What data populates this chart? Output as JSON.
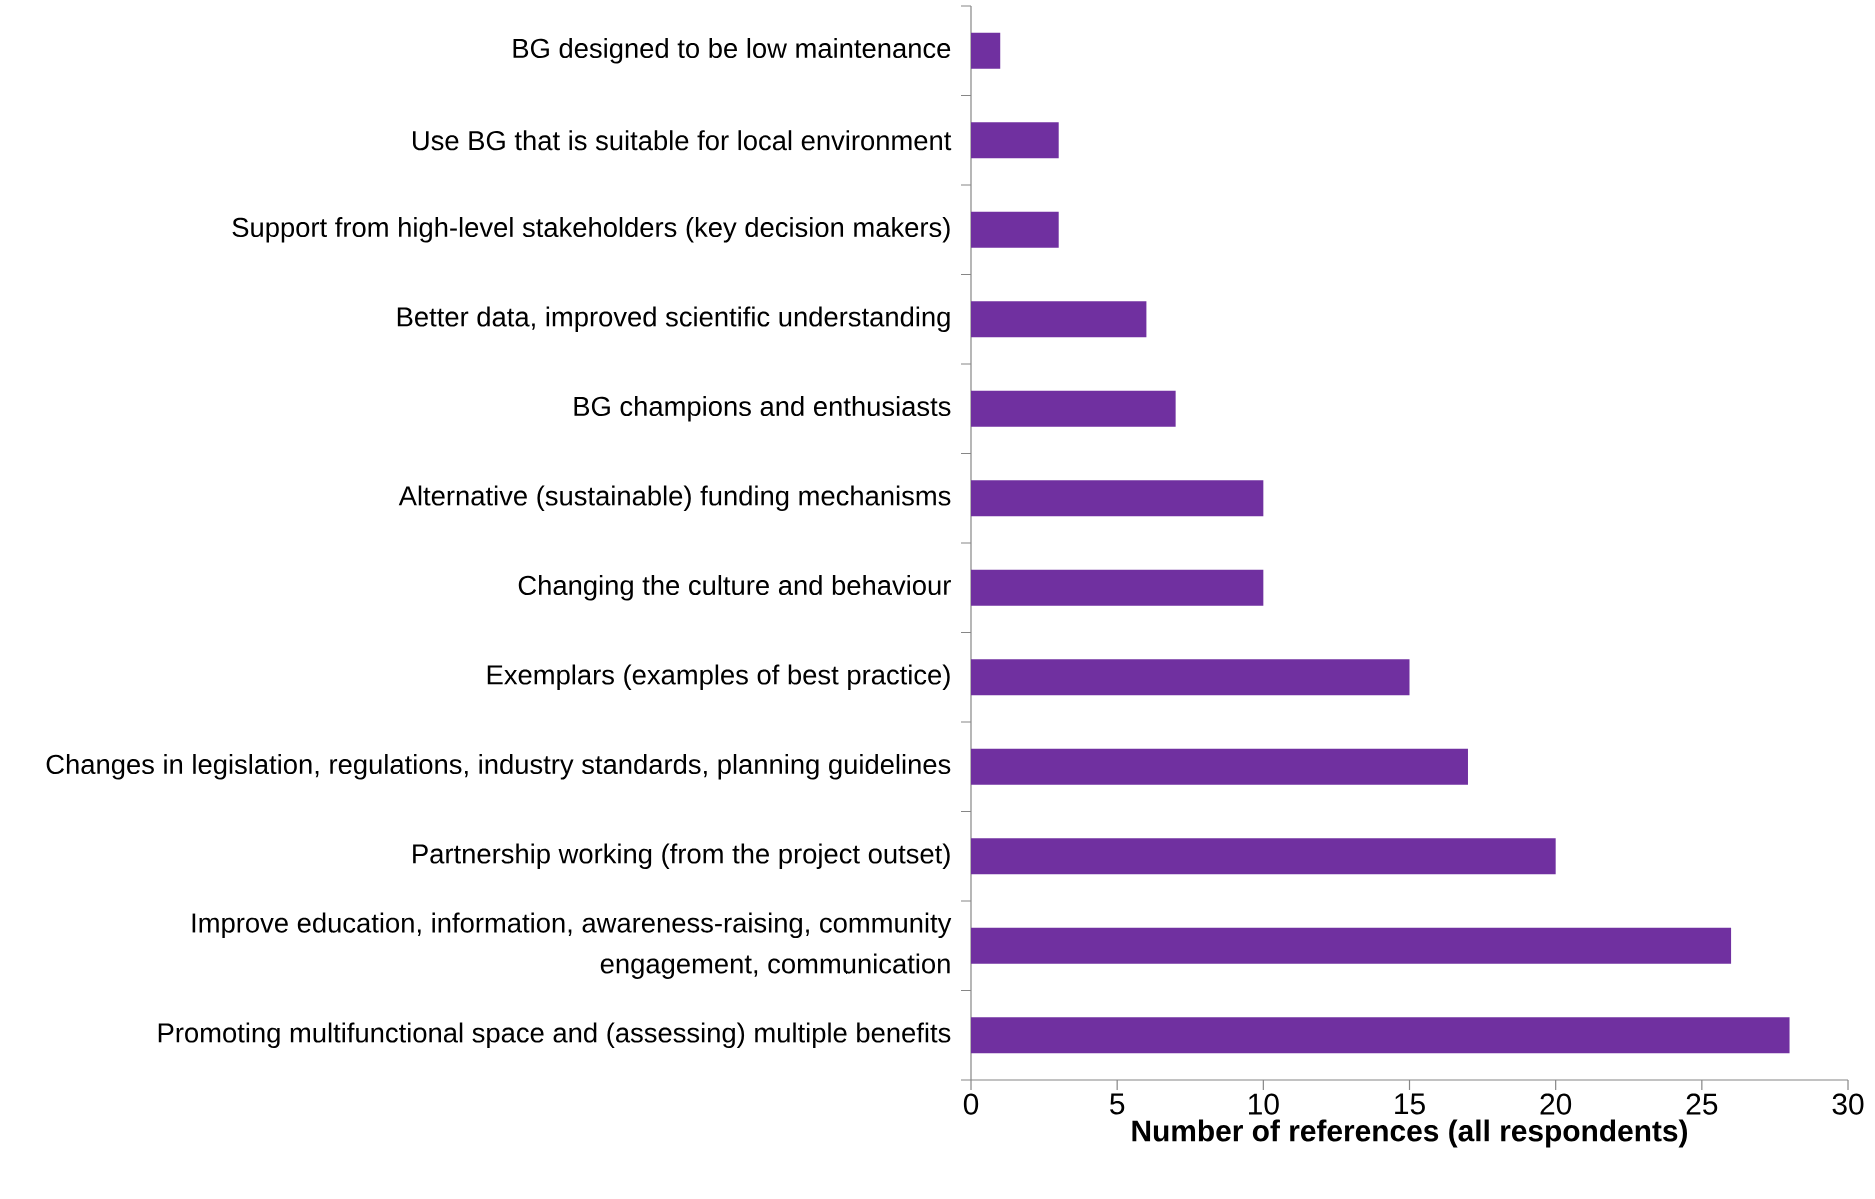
{
  "chart_data": {
    "type": "bar",
    "orientation": "horizontal",
    "categories": [
      "BG designed to be low maintenance",
      "Use BG that is suitable for local environment",
      "Support from high-level stakeholders (key decision makers)",
      "Better data, improved scientific understanding",
      "BG champions and enthusiasts",
      "Alternative (sustainable) funding mechanisms",
      "Changing the culture and behaviour",
      "Exemplars (examples of best practice)",
      "Changes in legislation, regulations, industry standards, planning guidelines",
      "Partnership working (from the project outset)",
      "Improve education, information, awareness-raising, community engagement, communication",
      "Promoting multifunctional space and (assessing) multiple benefits"
    ],
    "values": [
      1,
      3,
      3,
      6,
      7,
      10,
      10,
      15,
      17,
      20,
      26,
      28
    ],
    "color": "#7030a0",
    "xlim": [
      0,
      30
    ],
    "xticks": [
      0,
      5,
      10,
      15,
      20,
      25,
      30
    ],
    "xlabel": "Number of references (all respondents)"
  }
}
